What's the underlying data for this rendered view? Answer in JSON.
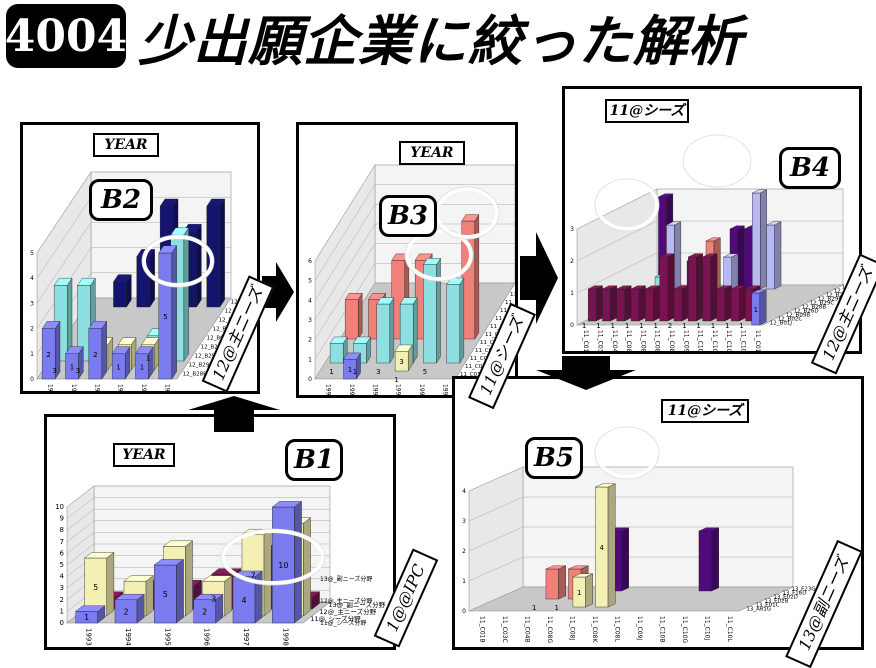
{
  "header": {
    "badge": "4004",
    "title": "少出願企業に絞った解析"
  },
  "panels": {
    "b1": {
      "label": "B1",
      "tag": "YEAR",
      "side": "1@@IPC"
    },
    "b2": {
      "label": "B2",
      "tag": "YEAR",
      "side": "12@主ニーズ"
    },
    "b3": {
      "label": "B3",
      "tag": "YEAR",
      "side": "11@シーズ"
    },
    "b4": {
      "label": "B4",
      "tag": "11@シーズ",
      "side": "12@主ニーズ"
    },
    "b5": {
      "label": "B5",
      "tag": "11@シーズ",
      "side": "13@副ニーズ"
    }
  },
  "colors": {
    "blue": "#7b7bf0",
    "cream": "#f4f0b4",
    "maroon": "#7a1450",
    "navy": "#14146e",
    "cyan": "#8ee0e0",
    "salmon": "#f0807a",
    "purple": "#500a7a",
    "lavender": "#b8b8f4"
  },
  "chart_data": [
    {
      "id": "B1",
      "type": "bar",
      "subtype": "3d",
      "categories": [
        "1993",
        "1994",
        "1995",
        "1996",
        "1997",
        "1998"
      ],
      "ylim": [
        0,
        10
      ],
      "yticks": [
        "0",
        "1",
        "2",
        "3",
        "4",
        "5",
        "6",
        "7",
        "8",
        "9",
        "10"
      ],
      "series": [
        {
          "name": "11@_シーズ分野",
          "color": "blue",
          "values": [
            1,
            2,
            5,
            2,
            4,
            10
          ]
        },
        {
          "name": "12@_主ニーズ分野",
          "color": "cream",
          "values": [
            5,
            3,
            6,
            3,
            7,
            8
          ]
        },
        {
          "name": "13@_副ニーズ分野",
          "color": "maroon",
          "values": [
            1,
            2,
            2,
            3,
            5,
            1
          ]
        }
      ],
      "labels": [
        [
          "1",
          "2",
          "5",
          "2",
          "4",
          "10"
        ],
        [
          "5",
          "",
          "",
          "3",
          "7",
          ""
        ]
      ]
    },
    {
      "id": "B2",
      "type": "bar",
      "subtype": "3d",
      "categories": [
        "1993",
        "1994",
        "1995",
        "1996",
        "1997",
        "1998"
      ],
      "ylim": [
        0,
        5
      ],
      "yticks": [
        "0",
        "1",
        "2",
        "3",
        "4",
        "5"
      ],
      "rows": [
        "12_B28B",
        "12_B29D",
        "12_B29C",
        "12_B29L",
        "12_B65G",
        "12_B01J",
        "12_B02C",
        "12_B09B",
        "12_B26D"
      ],
      "series": [
        {
          "name": "12_B28B",
          "color": "blue",
          "values": [
            2,
            1,
            2,
            1,
            1,
            5
          ]
        },
        {
          "name": "12_B29D",
          "color": "cream",
          "values": [
            0,
            0,
            1,
            1,
            1,
            0
          ]
        },
        {
          "name": "12_B29C",
          "color": "cyan",
          "values": [
            3,
            3,
            0,
            0,
            1,
            5
          ]
        },
        {
          "name": "12_B26D",
          "color": "navy",
          "values": [
            0,
            1,
            2,
            4,
            3,
            4
          ]
        }
      ],
      "labels": [
        [
          "2",
          "1",
          "2",
          "1",
          "1",
          "5"
        ],
        [
          "3",
          "3",
          "",
          "",
          "1",
          ""
        ]
      ]
    },
    {
      "id": "B3",
      "type": "bar",
      "subtype": "3d",
      "categories": [
        "1993",
        "1994",
        "1995",
        "1996",
        "1997",
        "1998"
      ],
      "ylim": [
        0,
        6
      ],
      "yticks": [
        "0",
        "1",
        "2",
        "3",
        "4",
        "5",
        "6"
      ],
      "rows": [
        "11_C01B",
        "11_C04B",
        "11_C08J",
        "11_C08G",
        "11_C03C",
        "11_C08L",
        "11_C09J",
        "11_C08K",
        "11_C10B",
        "11_C10G",
        "11_C10J",
        "11_C10L"
      ],
      "series": [
        {
          "name": "11_C01B",
          "color": "blue",
          "values": [
            0,
            1,
            0,
            0,
            0,
            0
          ]
        },
        {
          "name": "11_C04B",
          "color": "cream",
          "values": [
            0,
            0,
            0,
            1,
            0,
            0
          ]
        },
        {
          "name": "11_C08J",
          "color": "cyan",
          "values": [
            1,
            1,
            3,
            3,
            5,
            4
          ]
        },
        {
          "name": "11_C08L",
          "color": "salmon",
          "values": [
            2,
            2,
            4,
            4,
            0,
            6
          ]
        }
      ],
      "labels": [
        [
          "",
          "1",
          "",
          "1",
          "",
          ""
        ],
        [
          "1",
          "1",
          "3",
          "3",
          "5",
          ""
        ]
      ]
    },
    {
      "id": "B4",
      "type": "bar",
      "subtype": "3d",
      "categories": [
        "11_C01B",
        "11_C03C",
        "11_C04B",
        "11_C08G",
        "11_C08J",
        "11_C08K",
        "11_C08L",
        "11_C09J",
        "11_C10B",
        "11_C10G",
        "11_C10J",
        "11_C10L",
        "11_C01B"
      ],
      "ylim": [
        0,
        3
      ],
      "yticks": [
        "0",
        "1",
        "2",
        "3"
      ],
      "rows": [
        "12_B01J",
        "12_B02C",
        "12_B09B",
        "12_B26D",
        "12_B28B",
        "12_B29C",
        "12_B29D",
        "12_B29K",
        "12_B29L",
        "12_B65G"
      ],
      "series": [
        {
          "name": "12_B01J",
          "color": "blue",
          "values": [
            0,
            0,
            0,
            0,
            0,
            0,
            0,
            0,
            0,
            0,
            0,
            0,
            1
          ]
        },
        {
          "name": "12_B02C",
          "color": "maroon",
          "values": [
            1,
            1,
            1,
            1,
            1,
            2,
            1,
            2,
            2,
            1,
            1,
            1,
            0
          ]
        },
        {
          "name": "12_B28B",
          "color": "cyan",
          "values": [
            0,
            0,
            0,
            1,
            0,
            0,
            0,
            0,
            0,
            0,
            0,
            0,
            0
          ]
        },
        {
          "name": "12_B29C",
          "color": "salmon",
          "values": [
            0,
            0,
            0,
            0,
            0,
            0,
            2,
            0,
            0,
            0,
            0,
            0,
            0
          ]
        },
        {
          "name": "12_B65G",
          "color": "lavender",
          "values": [
            0,
            2,
            0,
            0,
            0,
            1,
            0,
            3,
            2,
            0,
            0,
            0,
            0
          ]
        },
        {
          "name": "12_B29L",
          "color": "purple",
          "values": [
            0,
            3,
            0,
            1,
            1,
            0,
            2,
            2,
            0,
            0,
            0,
            0,
            0
          ]
        }
      ],
      "labels": [
        [
          "1",
          "1",
          "1",
          "1",
          "1",
          "1",
          "2",
          "1",
          "1",
          "1",
          "1",
          "1",
          "1"
        ]
      ]
    },
    {
      "id": "B5",
      "type": "bar",
      "subtype": "3d",
      "categories": [
        "11_C01B",
        "11_C03C",
        "11_C04B",
        "11_C08G",
        "11_C08J",
        "11_C08K",
        "11_C08L",
        "11_C09J",
        "11_C10B",
        "11_C10G",
        "11_C10J",
        "11_C10L"
      ],
      "ylim": [
        0,
        4
      ],
      "yticks": [
        "0",
        "1",
        "2",
        "3",
        "4"
      ],
      "rows": [
        "13_A61G",
        "13_E01C",
        "13_E02B",
        "13_E02D",
        "13_F16D",
        "13_F23G"
      ],
      "series": [
        {
          "name": "13_E01C",
          "color": "cream",
          "values": [
            0,
            0,
            0,
            0,
            1,
            4,
            0,
            0,
            0,
            0,
            0,
            0
          ]
        },
        {
          "name": "13_E02D",
          "color": "salmon",
          "values": [
            0,
            0,
            1,
            1,
            0,
            0,
            0,
            0,
            0,
            0,
            0,
            0
          ]
        },
        {
          "name": "13_F23G",
          "color": "purple",
          "values": [
            0,
            0,
            0,
            0,
            2,
            0,
            0,
            0,
            2,
            0,
            0,
            0
          ]
        }
      ],
      "labels": [
        [
          "",
          "",
          "1",
          "1",
          "1",
          "4",
          "",
          "",
          "",
          "",
          "",
          ""
        ]
      ]
    }
  ]
}
